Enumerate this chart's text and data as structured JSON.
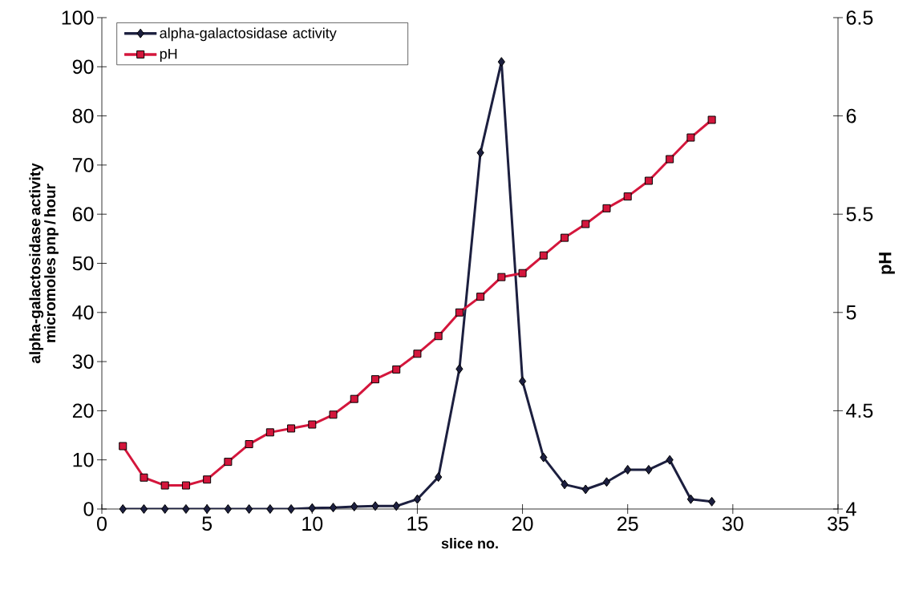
{
  "chart_data": {
    "type": "line",
    "xlabel": "slice no.",
    "ylabel": "alpha-galactosidase activity micromoles pnp / hour",
    "y2label": "pH",
    "x": [
      1,
      2,
      3,
      4,
      5,
      6,
      7,
      8,
      9,
      10,
      11,
      12,
      13,
      14,
      15,
      16,
      17,
      18,
      19,
      20,
      21,
      22,
      23,
      24,
      25,
      26,
      27,
      28,
      29
    ],
    "series": [
      {
        "name": "alpha-galactosidase activity",
        "color": "#1c1f3f",
        "marker": "diamond",
        "values": [
          0,
          0,
          0,
          0,
          0,
          0,
          0,
          0,
          0,
          0.2,
          0.3,
          0.5,
          0.6,
          0.6,
          2,
          6.5,
          28.5,
          72.5,
          91,
          26,
          10.5,
          5,
          4,
          5.5,
          8,
          8,
          10,
          2,
          1.5
        ]
      },
      {
        "name": "pH",
        "color": "#d4163c",
        "marker": "square",
        "axis": "y2",
        "values": [
          4.32,
          4.16,
          4.12,
          4.12,
          4.15,
          4.24,
          4.33,
          4.39,
          4.41,
          4.43,
          4.48,
          4.56,
          4.66,
          4.71,
          4.79,
          4.88,
          5.0,
          5.08,
          5.18,
          5.2,
          5.29,
          5.38,
          5.45,
          5.53,
          5.59,
          5.67,
          5.78,
          5.89,
          5.98
        ]
      }
    ],
    "xlim": [
      0,
      35
    ],
    "xticks": [
      0,
      5,
      10,
      15,
      20,
      25,
      30,
      35
    ],
    "ylim": [
      0,
      100
    ],
    "yticks": [
      0,
      10,
      20,
      30,
      40,
      50,
      60,
      70,
      80,
      90,
      100
    ],
    "y2lim": [
      4,
      6.5
    ],
    "y2ticks": [
      4,
      4.5,
      5,
      5.5,
      6,
      6.5
    ],
    "grid": false,
    "legend": "top left",
    "line_style": "solid"
  }
}
